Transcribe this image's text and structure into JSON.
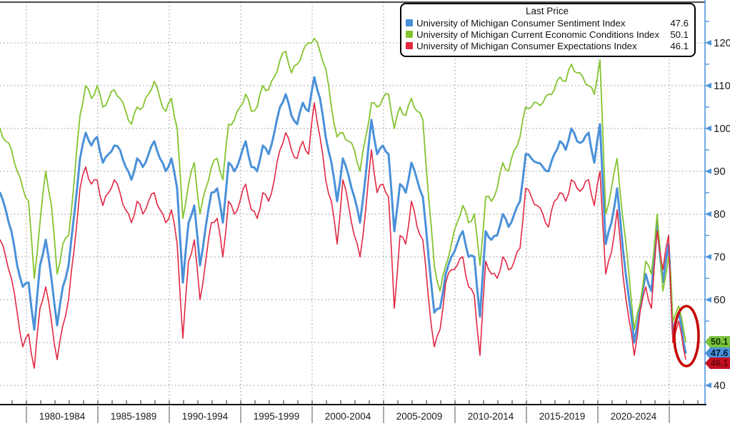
{
  "legend": {
    "title": "Last Price",
    "items": [
      {
        "label": "University of Michigan Consumer Sentiment Index",
        "value": "47.6",
        "color": "#4a90d9"
      },
      {
        "label": "University of Michigan Current Economic Conditions Index",
        "value": "50.1",
        "color": "#84c32e"
      },
      {
        "label": "University of Michigan Consumer Expectations Index",
        "value": "46.1",
        "color": "#e22741"
      }
    ]
  },
  "y_axis": {
    "major_ticks": [
      120,
      110,
      100,
      90,
      80,
      70,
      60,
      50,
      40
    ],
    "minor_ticks": [
      125,
      115,
      105,
      95,
      85,
      75,
      65,
      55,
      45
    ],
    "position": "right",
    "axis_color": "#4e94dc"
  },
  "x_axis": {
    "group_labels": [
      "1980-1984",
      "1985-1989",
      "1990-1994",
      "1995-1999",
      "2000-2004",
      "2005-2009",
      "2010-2014",
      "2015-2019",
      "2020-2024"
    ],
    "boundary_years": [
      1980,
      1985,
      1990,
      1995,
      2000,
      2005,
      2010,
      2015,
      2020,
      2025
    ]
  },
  "price_tags": [
    {
      "value": "50.1",
      "y_value": 50.1,
      "bg": "#7cc23f",
      "text_color": "#0b3000"
    },
    {
      "value": "47.6",
      "y_value": 47.6,
      "bg": "#4a90d9",
      "text_color": "#04182e"
    },
    {
      "value": "46.1",
      "y_value": 46.1,
      "bg": "#c21022",
      "text_color": "#6e000c"
    }
  ],
  "annotation": {
    "shape": "ellipse",
    "color": "#c40000",
    "meaning": "highlight of latest plunge"
  },
  "chart_data": {
    "type": "line",
    "title": "Last Price",
    "xlabel": "",
    "ylabel": "",
    "ylim": [
      35.5,
      130
    ],
    "grid": "dotted",
    "legend_position": "top-right",
    "columns": [
      "x_year",
      "sentiment",
      "current_conditions",
      "expectations"
    ],
    "series_meta": [
      {
        "key": "sentiment",
        "name": "University of Michigan Consumer Sentiment Index",
        "color": "#4a90d9",
        "width": 3,
        "last": 47.6
      },
      {
        "key": "current_conditions",
        "name": "University of Michigan Current Economic Conditions Index",
        "color": "#84c32e",
        "width": 1.8,
        "last": 50.1
      },
      {
        "key": "expectations",
        "name": "University of Michigan Consumer Expectations Index",
        "color": "#e22741",
        "width": 1.6,
        "last": 46.1
      }
    ],
    "rows": [
      [
        1978.15,
        85,
        100,
        74
      ],
      [
        1978.55,
        81,
        97,
        70
      ],
      [
        1978.95,
        76,
        95,
        65
      ],
      [
        1979.35,
        68,
        90,
        57
      ],
      [
        1979.75,
        63,
        86,
        49
      ],
      [
        1980.15,
        64,
        83,
        52
      ],
      [
        1980.55,
        53,
        65,
        44
      ],
      [
        1980.95,
        68,
        78,
        58
      ],
      [
        1981.35,
        74,
        90,
        63
      ],
      [
        1981.75,
        65,
        82,
        55
      ],
      [
        1982.15,
        54,
        66,
        46
      ],
      [
        1982.55,
        63,
        73,
        54
      ],
      [
        1982.95,
        68,
        75,
        60
      ],
      [
        1983.35,
        80,
        88,
        72
      ],
      [
        1983.75,
        93,
        103,
        86
      ],
      [
        1984.15,
        99,
        110,
        91
      ],
      [
        1984.55,
        96,
        107,
        87
      ],
      [
        1984.95,
        98,
        110,
        88
      ],
      [
        1985.35,
        92,
        105,
        82
      ],
      [
        1985.75,
        94,
        107,
        85
      ],
      [
        1986.15,
        96,
        109,
        88
      ],
      [
        1986.55,
        95,
        107,
        85
      ],
      [
        1986.95,
        91,
        104,
        81
      ],
      [
        1987.35,
        88,
        101,
        78
      ],
      [
        1987.75,
        93,
        105,
        83
      ],
      [
        1988.15,
        91,
        105,
        80
      ],
      [
        1988.55,
        94,
        108,
        83
      ],
      [
        1988.95,
        97,
        111,
        85
      ],
      [
        1989.35,
        93,
        107,
        81
      ],
      [
        1989.75,
        90,
        104,
        78
      ],
      [
        1990.15,
        93,
        107,
        81
      ],
      [
        1990.55,
        86,
        100,
        73
      ],
      [
        1990.95,
        64,
        79,
        51
      ],
      [
        1991.35,
        78,
        87,
        69
      ],
      [
        1991.75,
        82,
        92,
        74
      ],
      [
        1992.15,
        68,
        80,
        60
      ],
      [
        1992.55,
        77,
        86,
        69
      ],
      [
        1992.95,
        85,
        91,
        78
      ],
      [
        1993.35,
        86,
        93,
        79
      ],
      [
        1993.75,
        78,
        88,
        70
      ],
      [
        1994.15,
        92,
        101,
        83
      ],
      [
        1994.55,
        90,
        102,
        80
      ],
      [
        1994.95,
        93,
        105,
        83
      ],
      [
        1995.35,
        97,
        108,
        87
      ],
      [
        1995.75,
        91,
        104,
        81
      ],
      [
        1996.15,
        90,
        105,
        79
      ],
      [
        1996.55,
        96,
        110,
        85
      ],
      [
        1996.95,
        94,
        109,
        83
      ],
      [
        1997.35,
        99,
        112,
        88
      ],
      [
        1997.75,
        105,
        116,
        95
      ],
      [
        1998.15,
        108,
        118,
        99
      ],
      [
        1998.55,
        103,
        113,
        95
      ],
      [
        1998.95,
        101,
        115,
        93
      ],
      [
        1999.35,
        106,
        118,
        97
      ],
      [
        1999.75,
        104,
        120,
        94
      ],
      [
        2000.15,
        112,
        121,
        106
      ],
      [
        2000.55,
        107,
        118,
        98
      ],
      [
        2000.95,
        98,
        114,
        88
      ],
      [
        2001.35,
        92,
        105,
        83
      ],
      [
        2001.75,
        83,
        98,
        73
      ],
      [
        2002.15,
        93,
        99,
        88
      ],
      [
        2002.55,
        89,
        97,
        82
      ],
      [
        2002.95,
        84,
        95,
        75
      ],
      [
        2003.35,
        78,
        90,
        70
      ],
      [
        2003.75,
        89,
        98,
        81
      ],
      [
        2004.15,
        102,
        106,
        95
      ],
      [
        2004.55,
        94,
        105,
        85
      ],
      [
        2004.95,
        96,
        107,
        87
      ],
      [
        2005.35,
        94,
        108,
        84
      ],
      [
        2005.75,
        76,
        100,
        58
      ],
      [
        2006.15,
        87,
        105,
        75
      ],
      [
        2006.55,
        85,
        103,
        73
      ],
      [
        2006.95,
        92,
        107,
        83
      ],
      [
        2007.35,
        88,
        104,
        77
      ],
      [
        2007.75,
        84,
        102,
        74
      ],
      [
        2008.15,
        70,
        84,
        60
      ],
      [
        2008.55,
        57,
        68,
        49
      ],
      [
        2008.95,
        58,
        62,
        53
      ],
      [
        2009.35,
        66,
        68,
        64
      ],
      [
        2009.75,
        70,
        73,
        67
      ],
      [
        2010.15,
        73,
        78,
        68
      ],
      [
        2010.55,
        76,
        82,
        70
      ],
      [
        2010.95,
        70,
        78,
        63
      ],
      [
        2011.35,
        70,
        80,
        61
      ],
      [
        2011.75,
        56,
        68,
        47
      ],
      [
        2012.15,
        76,
        84,
        69
      ],
      [
        2012.55,
        74,
        83,
        66
      ],
      [
        2012.95,
        75,
        86,
        65
      ],
      [
        2013.35,
        80,
        92,
        70
      ],
      [
        2013.75,
        77,
        90,
        67
      ],
      [
        2014.15,
        80,
        95,
        69
      ],
      [
        2014.55,
        83,
        98,
        72
      ],
      [
        2014.95,
        94,
        105,
        86
      ],
      [
        2015.35,
        93,
        105,
        84
      ],
      [
        2015.75,
        92,
        106,
        82
      ],
      [
        2016.15,
        91,
        106,
        80
      ],
      [
        2016.55,
        90,
        108,
        77
      ],
      [
        2016.95,
        94,
        109,
        83
      ],
      [
        2017.35,
        97,
        112,
        85
      ],
      [
        2017.75,
        95,
        111,
        83
      ],
      [
        2018.15,
        100,
        115,
        88
      ],
      [
        2018.55,
        97,
        113,
        86
      ],
      [
        2018.95,
        97,
        112,
        86
      ],
      [
        2019.35,
        99,
        110,
        88
      ],
      [
        2019.75,
        92,
        108,
        82
      ],
      [
        2020.15,
        101,
        116,
        90
      ],
      [
        2020.55,
        73,
        80,
        66
      ],
      [
        2020.95,
        78,
        86,
        71
      ],
      [
        2021.35,
        86,
        93,
        81
      ],
      [
        2021.75,
        72,
        79,
        66
      ],
      [
        2022.15,
        61,
        67,
        56
      ],
      [
        2022.55,
        50,
        53,
        47
      ],
      [
        2022.95,
        58,
        59,
        57
      ],
      [
        2023.35,
        66,
        69,
        63
      ],
      [
        2023.75,
        62,
        66,
        58
      ],
      [
        2024.15,
        78,
        80,
        76
      ],
      [
        2024.55,
        64,
        62,
        67
      ],
      [
        2024.95,
        73,
        70,
        75
      ],
      [
        2025.1,
        64,
        66,
        62
      ],
      [
        2025.25,
        52,
        55,
        50
      ],
      [
        2025.65,
        57,
        58.5,
        55
      ],
      [
        2025.85,
        54,
        56,
        52
      ],
      [
        2026.0,
        50,
        53,
        48.5
      ],
      [
        2026.15,
        47.6,
        50.1,
        46.1
      ]
    ]
  }
}
